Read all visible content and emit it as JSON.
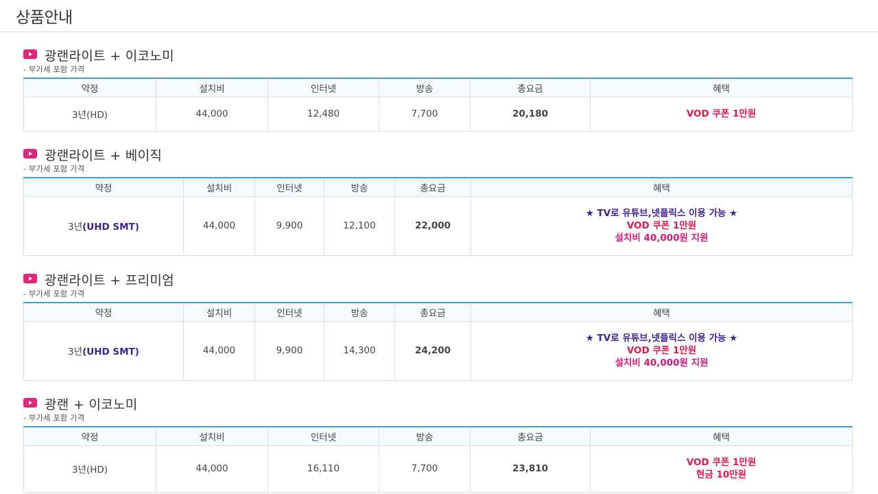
{
  "page_title": "상품안내",
  "vat_note": "- 부가세 포함 가격",
  "headers": {
    "contract": "약정",
    "install": "설치비",
    "internet": "인터넷",
    "broadcast": "방송",
    "total": "총요금",
    "benefit": "혜택"
  },
  "colors": {
    "accent_pink": "#e0287b",
    "table_top_border": "#3aa3d6",
    "total_purple": "#3e2392",
    "benefit_red": "#e0184f",
    "benefit_pink": "#d3197a"
  },
  "icon": "play-icon",
  "sections": [
    {
      "title": "광랜라이트 + 이코노미",
      "row": {
        "contract_prefix": "3년",
        "contract_suffix": "(HD)",
        "install": "44,000",
        "internet": "12,480",
        "broadcast": "7,700",
        "total": "20,180",
        "benefits": [
          "VOD 쿠폰 1만원"
        ]
      }
    },
    {
      "title": "광랜라이트 + 베이직",
      "row": {
        "contract_prefix": "3년",
        "contract_suffix": "(UHD SMT)",
        "install": "44,000",
        "internet": "9,900",
        "broadcast": "12,100",
        "total": "22,000",
        "benefits": [
          "★ TV로 유튜브,넷플릭스 이용 가능 ★",
          "VOD 쿠폰 1만원",
          "설치비 40,000원 지원"
        ]
      }
    },
    {
      "title": "광랜라이트 + 프리미엄",
      "row": {
        "contract_prefix": "3년",
        "contract_suffix": "(UHD SMT)",
        "install": "44,000",
        "internet": "9,900",
        "broadcast": "14,300",
        "total": "24,200",
        "benefits": [
          "★ TV로 유튜브,넷플릭스 이용 가능 ★",
          "VOD 쿠폰 1만원",
          "설치비 40,000원 지원"
        ]
      }
    },
    {
      "title": "광랜 + 이코노미",
      "row": {
        "contract_prefix": "3년",
        "contract_suffix": "(HD)",
        "install": "44,000",
        "internet": "16,110",
        "broadcast": "7,700",
        "total": "23,810",
        "benefits": [
          "VOD 쿠폰 1만원",
          "현금 10만원"
        ]
      }
    }
  ]
}
